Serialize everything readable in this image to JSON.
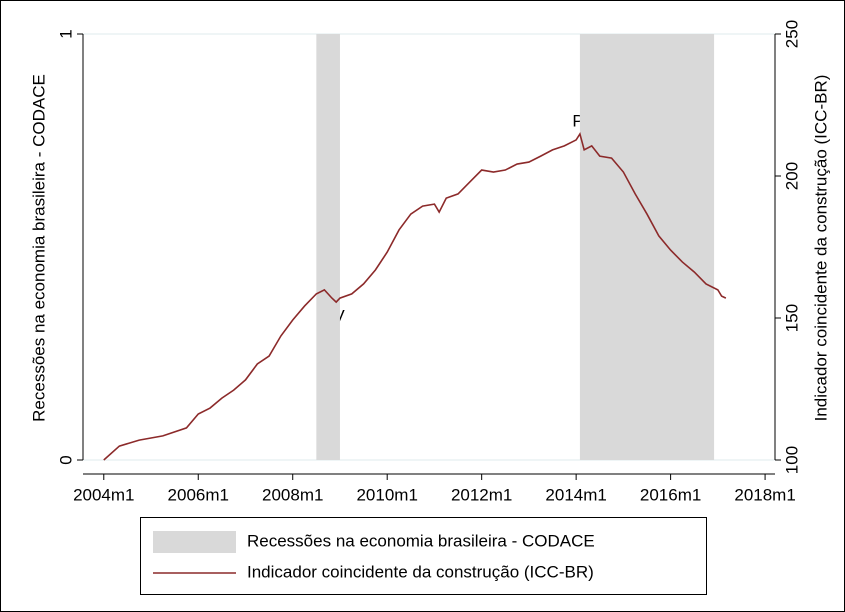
{
  "chart_data": {
    "type": "line",
    "y_label": "Recessões na economia brasileira - CODACE",
    "y2_label": "Indicador coincidente da construção (ICC-BR)",
    "annotations": [
      "P",
      "V",
      "P"
    ],
    "xlim": [
      2003.56,
      2018.21
    ],
    "xticks": [
      {
        "value": 2004,
        "label": "2004m1"
      },
      {
        "value": 2006,
        "label": "2006m1"
      },
      {
        "value": 2008,
        "label": "2008m1"
      },
      {
        "value": 2010,
        "label": "2010m1"
      },
      {
        "value": 2012,
        "label": "2012m1"
      },
      {
        "value": 2014,
        "label": "2014m1"
      },
      {
        "value": 2016,
        "label": "2016m1"
      },
      {
        "value": 2018,
        "label": "2018m1"
      }
    ],
    "ylim": [
      0,
      1
    ],
    "yticks": [
      0,
      1
    ],
    "y2lim": [
      100,
      250
    ],
    "y2ticks": [
      100,
      150,
      200,
      250
    ],
    "grid": true,
    "series": [
      {
        "name": "Recessões na economia brasileira - CODACE",
        "type": "span",
        "color": "#d9d9d9",
        "spans": [
          [
            2008.5,
            2009.0
          ],
          [
            2014.08,
            2016.92
          ]
        ],
        "values": [
          1,
          1
        ]
      },
      {
        "name": "Indicador coincidente da construção (ICC-BR)",
        "type": "line",
        "color": "#8c2a2a",
        "axis": "y2",
        "x": [
          2004.0,
          2004.33,
          2004.75,
          2005.25,
          2005.75,
          2006.0,
          2006.25,
          2006.5,
          2006.75,
          2007.0,
          2007.25,
          2007.5,
          2007.75,
          2008.0,
          2008.25,
          2008.5,
          2008.67,
          2008.83,
          2008.92,
          2009.0,
          2009.25,
          2009.5,
          2009.75,
          2010.0,
          2010.25,
          2010.5,
          2010.75,
          2011.0,
          2011.1,
          2011.25,
          2011.5,
          2011.75,
          2012.0,
          2012.25,
          2012.5,
          2012.75,
          2013.0,
          2013.25,
          2013.5,
          2013.75,
          2014.0,
          2014.08,
          2014.17,
          2014.33,
          2014.5,
          2014.75,
          2015.0,
          2015.25,
          2015.5,
          2015.75,
          2016.0,
          2016.25,
          2016.5,
          2016.75,
          2017.0,
          2017.08,
          2017.17
        ],
        "values": [
          100.0,
          104.9,
          107.0,
          108.5,
          111.3,
          116.2,
          118.3,
          121.8,
          124.6,
          128.2,
          133.8,
          136.6,
          143.7,
          149.3,
          154.2,
          158.5,
          159.9,
          157.0,
          155.6,
          157.0,
          158.5,
          162.0,
          166.9,
          173.2,
          181.0,
          186.6,
          189.4,
          190.1,
          187.3,
          192.2,
          193.7,
          197.9,
          202.1,
          201.4,
          202.1,
          204.2,
          204.9,
          207.0,
          209.2,
          210.6,
          212.7,
          214.8,
          209.2,
          210.6,
          207.0,
          206.3,
          201.4,
          193.7,
          186.6,
          178.9,
          173.9,
          169.7,
          166.2,
          162.0,
          159.9,
          157.7,
          157.0
        ]
      }
    ]
  }
}
